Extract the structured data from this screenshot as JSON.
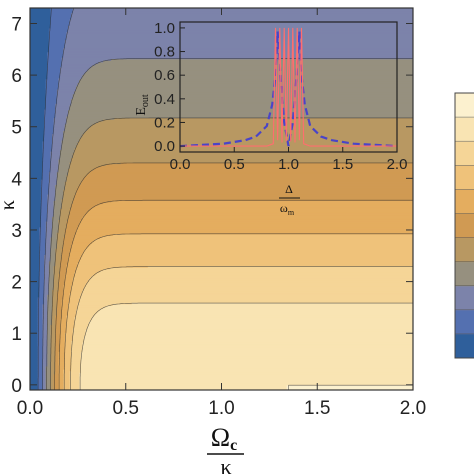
{
  "chart_data": [
    {
      "type": "heatmap",
      "subtype": "filled contour plot",
      "x_label_main": "Ω",
      "x_label_sub": "c",
      "x_label_den": "κ",
      "y_label_fragment": "κ",
      "xlim": [
        0.0,
        2.0
      ],
      "ylim": [
        -0.1,
        7.3
      ],
      "x_ticks": [
        "0.0",
        "0.5",
        "1.0",
        "1.5",
        "2.0"
      ],
      "y_ticks": [
        "0",
        "1",
        "2",
        "3",
        "4",
        "5",
        "6",
        "7"
      ],
      "x_tick_values": [
        0.0,
        0.5,
        1.0,
        1.5,
        2.0
      ],
      "y_tick_values": [
        0,
        1,
        2,
        3,
        4,
        5,
        6,
        7
      ],
      "contour_levels": 10,
      "colormap": [
        "#2f5f9b",
        "#5470b0",
        "#7c83aa",
        "#96907f",
        "#b89862",
        "#d09a53",
        "#e4ad5f",
        "#efc27a",
        "#f5d597",
        "#f9e4b3",
        "#fcf1cf"
      ],
      "legend": "colorbar at right, no tick labels visible"
    },
    {
      "type": "line",
      "role": "inset",
      "xlabel_num": "Δ",
      "xlabel_den": "ω",
      "xlabel_den_sub": "m",
      "ylabel_main": "E",
      "ylabel_sub": "out",
      "xlim": [
        0.0,
        2.0
      ],
      "ylim": [
        -0.05,
        1.05
      ],
      "x_ticks": [
        "0.0",
        "0.5",
        "1.0",
        "1.5",
        "2.0"
      ],
      "y_ticks": [
        "0.0",
        "0.2",
        "0.4",
        "0.6",
        "0.8",
        "1.0"
      ],
      "x_tick_values": [
        0.0,
        0.5,
        1.0,
        1.5,
        2.0
      ],
      "y_tick_values": [
        0.0,
        0.2,
        0.4,
        0.6,
        0.8,
        1.0
      ],
      "series": [
        {
          "style": "dashed",
          "color": "#4a44c8",
          "x": [
            0.0,
            0.2,
            0.4,
            0.6,
            0.7,
            0.8,
            0.85,
            0.88,
            0.9,
            0.93,
            0.96,
            1.0,
            1.04,
            1.07,
            1.1,
            1.12,
            1.15,
            1.2,
            1.3,
            1.4,
            1.6,
            1.8,
            2.0
          ],
          "values": [
            0.0,
            0.01,
            0.02,
            0.05,
            0.08,
            0.17,
            0.35,
            0.6,
            0.97,
            0.55,
            0.2,
            0.0,
            0.2,
            0.55,
            0.97,
            0.6,
            0.35,
            0.17,
            0.08,
            0.05,
            0.02,
            0.01,
            0.0
          ]
        },
        {
          "style": "solid",
          "color": "#ff6e6e",
          "x": [
            0.0,
            0.8,
            0.86,
            0.88,
            0.9,
            0.92,
            0.94,
            0.96,
            0.98,
            1.0,
            1.02,
            1.04,
            1.06,
            1.08,
            1.1,
            1.12,
            1.14,
            1.2,
            2.0
          ],
          "values": [
            0.0,
            0.0,
            0.02,
            1.0,
            0.05,
            1.0,
            0.03,
            1.0,
            0.04,
            1.0,
            0.04,
            1.0,
            0.03,
            1.0,
            0.05,
            1.0,
            0.02,
            0.0,
            0.0
          ]
        }
      ]
    }
  ]
}
